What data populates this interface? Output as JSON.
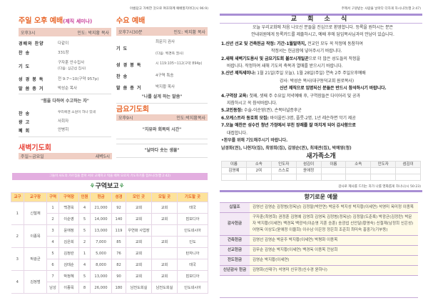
{
  "left": {
    "verse_top": "아름답고 거룩한 것으로 여호와께 예배할지어다(시 96:9)",
    "sunday": {
      "title": "주일 오후 예배",
      "subtitle": "(제직 세미나)",
      "time": "오후3시",
      "leader": "인도: 박지황 목사",
      "rows": [
        {
          "k": "경배와 찬양",
          "v": "다같이"
        },
        {
          "k": "찬 송",
          "v": "331장"
        },
        {
          "k": "기 도",
          "v": "구자훈 안수집사",
          "v2": "(다음: 심근섭 집사)"
        },
        {
          "k": "성 경 봉 독",
          "v": "전 9:7~10(구약 957p)"
        },
        {
          "k": "말 씀 증 거",
          "v": "박성순 목사"
        }
      ],
      "sermon": "\"힘을 다하여 수고하는 자\"",
      "rows2": [
        {
          "k": "찬 송",
          "v": "우리에겐 소원이 하나 있네"
        },
        {
          "k": "광 고",
          "v": "사회자"
        },
        {
          "k": "폐 회",
          "v": "안병히"
        }
      ]
    },
    "dawn": {
      "title": "새벽기도회",
      "days": "주일~금요일",
      "time": "새벽5시"
    },
    "wed": {
      "title": "수요 예배",
      "time": "오후7시30분",
      "leader": "인도: 박지황 목사",
      "rows": [
        {
          "k": "기 도",
          "v": "최문지 권사",
          "v2": "(다음: 백경옥 권사)"
        },
        {
          "k": "성 경 봉 독",
          "v": "시 119:105~112(구약 894p)"
        },
        {
          "k": "찬 송",
          "v": "4구역 특송"
        },
        {
          "k": "말 씀 증 거",
          "v": "박지황 목사"
        }
      ],
      "sermon": "\"나를 살게 하는 말씀\""
    },
    "fri": {
      "title": "금요기도회",
      "time": "오후9시",
      "leader": "인도:박지황목사",
      "sermon": "\"치유와 회복의 시간\""
    },
    "daily": "\"날마다 솟는 생물\"",
    "banner": "그들이 사도의 가르침을 받아 서로 교제하고 떡을 떼며 오로지 기도하기를 힘쓰니라(행 2:42)",
    "report": {
      "title": "구역보고",
      "icon": "sprout-icon",
      "headers": [
        "교구",
        "교구장",
        "구역",
        "구역장",
        "인원",
        "헌금",
        "성경",
        "모인 곳",
        "모일 곳",
        "기도할 곳"
      ],
      "groups": [
        {
          "no": "1",
          "head": "신철재",
          "rows": [
            [
              "1",
              "백경옥",
              "4",
              "21,000",
              "92",
              "교회",
              "교회",
              "태국"
            ],
            [
              "2",
              "이순영",
              "5",
              "14,000",
              "140",
              "교회",
              "교회",
              "캄보디아"
            ]
          ]
        },
        {
          "no": "2",
          "head": "이종목",
          "rows": [
            [
              "3",
              "윤애정",
              "5",
              "13,000",
              "119",
              "우연화 사업장",
              "",
              "인도네시아"
            ],
            [
              "4",
              "김은희",
              "2",
              "7,000",
              "85",
              "교회",
              "교회",
              "인도"
            ]
          ]
        },
        {
          "no": "3",
          "head": "박광균",
          "rows": [
            [
              "5",
              "김정란",
              "1",
              "5,000",
              "76",
              "교회",
              "",
              "탄자니아"
            ],
            [
              "6",
              "김태순",
              "4",
              "8,000",
              "82",
              "교회",
              "교회",
              "태국"
            ]
          ]
        },
        {
          "no": "4",
          "head": "김정범",
          "rows": [
            [
              "7",
              "박정혜",
              "5",
              "13,000",
              "90",
              "교회",
              "교회",
              "캄보디아"
            ],
            [
              "남성",
              "이종목",
              "8",
              "26,000",
              "180",
              "남전도회실",
              "남전도회실",
              "인도네시아"
            ]
          ]
        }
      ]
    }
  },
  "right": {
    "verse_top": "주께서 구원받는 사람을 날마다 더하게 하시니라(행 2:47)",
    "news_title": "교 회 소 식",
    "welcome": [
      "오늘 우리교회에 처음 나오신 분들을 진심으로 환영합니다. 등록을 원하시는 분은",
      "안내위원에게 등록카드를 제출하시고, 예배 후에 담임목사님과의 만남이 있습니다."
    ],
    "items": [
      {
        "b": "1.신년 선교 및 건축헌금 작정: 기간-1월말까지,",
        "t": " 전교인 모두 꼭 작정에 동참하여",
        "t2": "작정서는 헌금함에 넣어주시기 바랍니다."
      },
      {
        "b": "2.새해 새벽기도용사 및 금요기도회 불쏘시개일꾼",
        "t": "으로 더 많은 성도들의 작정을",
        "t2": "바랍니다. 작정하여 새해 기도의 축복과 열매를 받으시기 바랍니다."
      },
      {
        "b": "3.신년 제직세미나:",
        "t": " 1월 21일(주일 오늘), 1월 28일(주일) 연속 2주 주일오후예배",
        "t2": "강사: 박성순 목사(대구동덕교회 원로목사)",
        "t3": "신년 제직으로 임명되신 분들은 반드시 참석하시기 바랍니다."
      },
      {
        "b": "4.구역장 교육:",
        "t": " 첫째, 셋째 주 수요일 저녁예배 후, 구역장들은 다이어리 및 공과",
        "t2": "지참하시고 꼭 참석바랍니다."
      },
      {
        "b": "5.교인동정:",
        "t": " 수술-이순영(권), 손목터널증후군"
      },
      {
        "b": "6.오케스트라 동호회 모집:",
        "t": " 바이올린-3명, 플룻-2명, 1년 레슨하면 악기 제공"
      },
      {
        "b": "7.오늘 애찬은 성수진 청년 가정에서 부친 장례를 잘 마치게 되어 감사함으로",
        "t": "",
        "t2": "대접합니다."
      }
    ],
    "prayer_title": "•환우를 위해 기도해주시기 바랍니다.",
    "prayer_names": "남경화(권), 나현자(집), 최영희(집), 김영순(권), 최재관(집), 박예영(청)",
    "newfamily": {
      "title": "새가족소개",
      "headers": [
        "이름",
        "소속",
        "인도자",
        "섬김이",
        "이름",
        "소속",
        "인도자",
        "섬김이"
      ],
      "rows": [
        [
          "김영예",
          "2여",
          "스스로",
          "윤애정",
          "",
          "",
          "",
          ""
        ],
        [
          "",
          "",
          "",
          "",
          "",
          "",
          "",
          ""
        ]
      ]
    },
    "verse_mid": "감사로 제사를 드리는 자가 나를 영화롭게 하나니(시 50:23)",
    "offering_title": "향기로운 예물",
    "offerings": [
      {
        "k": "십일조",
        "v": "김영선 김영순 김정범(정옥남) 김정팔(박만연) 박문주 박지성 박지황(이세연) 석영미 옥미정 이종목"
      },
      {
        "k": "감사헌금",
        "v": "구자훈(최영희) 권정훈 김명예 김영희 김영옥 김정범(정옥남) 김정팔(도춘록) 박광균(김정란) 박문자 박지황(이세연) 백경옥 백광석(이순영 지훈 승훈) 송광섭 신안달(황영숙) 신철재(남정희 신은성) 어명옥 이상도(윤애정 이율희) 이수남 이은정 정은희 조준희 최미숙 홍중기(기부동)"
      },
      {
        "k": "건축헌금",
        "v": "김영선 김영순 박문주 박지황(이세연) 박평화 이종목"
      },
      {
        "k": "선교헌금",
        "v": "김무순 김영순 박지황(이세연) 백경옥 이종목 전삼희"
      },
      {
        "k": "전도헌금",
        "v": "김영순 박지황(이세연)"
      },
      {
        "k": "신년감사 헌금",
        "v": "김명화(신태구) 석영미 신우정(신수경 윤하나)"
      }
    ]
  },
  "colors": {
    "orange": "#e8662a",
    "pink_bar": "#f0cfc4",
    "banner": "#e3aee0",
    "purple_line": "#a98fd4",
    "table_header": "#fde29a"
  }
}
